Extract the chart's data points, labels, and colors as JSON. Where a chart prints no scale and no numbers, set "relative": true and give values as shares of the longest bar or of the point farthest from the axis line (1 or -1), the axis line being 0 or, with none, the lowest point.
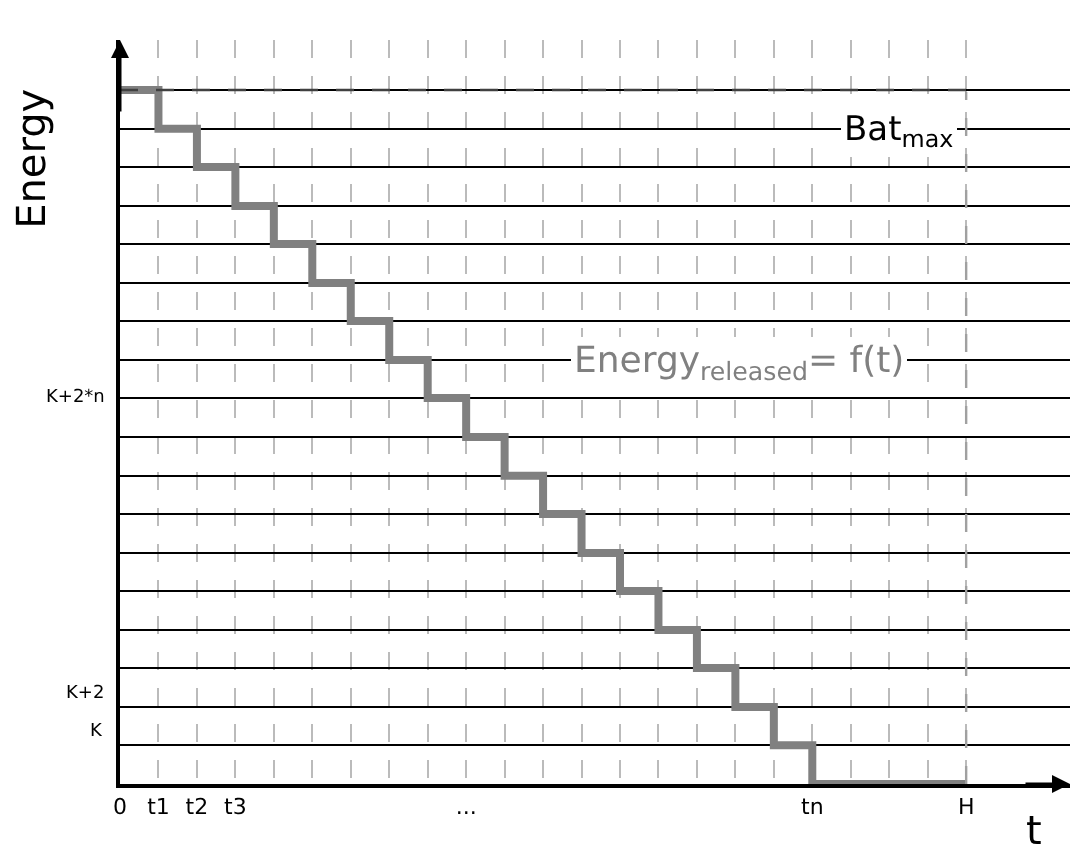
{
  "chart_data": {
    "type": "step",
    "ylabel": "Energy",
    "xlabel": "t",
    "relative": true,
    "categories": [
      "0",
      "t1",
      "t2",
      "t3",
      null,
      null,
      null,
      null,
      null,
      "...",
      null,
      null,
      null,
      null,
      null,
      null,
      null,
      null,
      "tn",
      null,
      null,
      null,
      "H"
    ],
    "series": [
      {
        "name": "Energy$_{released}$= f(t)",
        "color": "#808080",
        "values": [
          1,
          0.944,
          0.889,
          0.833,
          0.778,
          0.722,
          0.667,
          0.611,
          0.556,
          0.5,
          0.444,
          0.389,
          0.333,
          0.278,
          0.222,
          0.167,
          0.111,
          0.056,
          0,
          0,
          0,
          0,
          0
        ]
      }
    ],
    "ref_lines": [
      {
        "axis": "y",
        "value": 1,
        "label": "Bat$_{max}$",
        "line_style": "dashed",
        "color": "#404040"
      },
      {
        "axis": "x",
        "value": "H",
        "line_style": "dashed",
        "color": "#a0a0a0"
      }
    ],
    "annotations": [
      "K",
      "K+2",
      "K+2*n"
    ],
    "grid": true,
    "legend": false,
    "line_style": "solid",
    "marker": "none"
  }
}
